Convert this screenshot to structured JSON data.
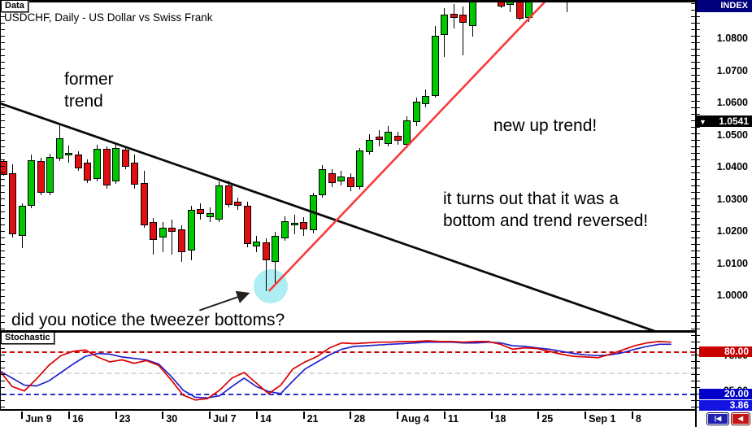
{
  "window": {
    "data_tab_label": "Data",
    "title": "USDCHF, Daily - US Dollar vs Swiss Frank",
    "stochastic_tab_label": "Stochastic",
    "index_header": "INDEX"
  },
  "annotations": {
    "former_trend_line1": "former",
    "former_trend_line2": "trend",
    "new_up_trend": "new up trend!",
    "reversal_line1": "it turns out that it was a",
    "reversal_line2": "bottom and trend reversed!",
    "tweezer_question": "did you notice the tweezer bottoms?"
  },
  "price_axis": {
    "tick_labels": [
      "1.0800",
      "1.0700",
      "1.0600",
      "1.0500",
      "1.0400",
      "1.0300",
      "1.0200",
      "1.0100",
      "1.0000"
    ],
    "tick_values": [
      1.08,
      1.07,
      1.06,
      1.05,
      1.04,
      1.03,
      1.02,
      1.01,
      1.0
    ],
    "current_price_label": "1.0541",
    "current_price_arrow": "▼"
  },
  "stoch_axis": {
    "upper_level_label": "80.00",
    "upper_hidden_label": "75.00",
    "lower_hidden_label": "25.00",
    "lower_level_label": "20.00",
    "current_value_label": "3.86"
  },
  "x_axis": {
    "ticks": [
      {
        "d": 2,
        "label": "Jun 9"
      },
      {
        "d": 7,
        "label": "16"
      },
      {
        "d": 12,
        "label": "23"
      },
      {
        "d": 17,
        "label": "30"
      },
      {
        "d": 22,
        "label": "Jul 7"
      },
      {
        "d": 27,
        "label": "14"
      },
      {
        "d": 32,
        "label": "21"
      },
      {
        "d": 37,
        "label": "28"
      },
      {
        "d": 42,
        "label": "Aug 4"
      },
      {
        "d": 47,
        "label": "11"
      },
      {
        "d": 52,
        "label": "18"
      },
      {
        "d": 57,
        "label": "25"
      },
      {
        "d": 62,
        "label": "Sep 1"
      },
      {
        "d": 67,
        "label": "8"
      }
    ]
  },
  "nav": {
    "scroll_start_icon": "|◀",
    "scroll_left_icon": "◀"
  },
  "colors": {
    "bull": "#00c800",
    "bear": "#e01010",
    "downtrend_line": "#0a0a0a",
    "uptrend_line": "#f93b3b",
    "stoch_red": "#dd0000",
    "stoch_blue": "#2222cc",
    "level_red": "#cc0000",
    "level_gray": "#d8d8d8",
    "level_blue": "#2233cc",
    "upper_badge_bg": "#c80000",
    "lower_badge_bg": "#0000c8",
    "current_badge_bg": "#1414e1",
    "index_bg": "#00007d",
    "highlight": "#aeeef2",
    "arrow": "#222222"
  },
  "chart_data": {
    "type": "candlestick",
    "symbol": "USDCHF",
    "timeframe": "Daily",
    "title": "USDCHF, Daily - US Dollar vs Swiss Frank",
    "price_axis_range_visible": [
      0.989,
      1.0919
    ],
    "last_price": 1.0541,
    "candles": [
      [
        0,
        1.0418,
        1.042,
        1.0372,
        1.0375
      ],
      [
        1,
        1.038,
        1.0408,
        1.018,
        1.019
      ],
      [
        2,
        1.0185,
        1.0286,
        1.0147,
        1.0279
      ],
      [
        3,
        1.0279,
        1.0438,
        1.0271,
        1.0421
      ],
      [
        4,
        1.0418,
        1.0428,
        1.0312,
        1.0319
      ],
      [
        5,
        1.0319,
        1.0441,
        1.0312,
        1.0431
      ],
      [
        6,
        1.0426,
        1.0529,
        1.0418,
        1.0489
      ],
      [
        7,
        1.0436,
        1.0466,
        1.0413,
        1.0443
      ],
      [
        8,
        1.0438,
        1.0448,
        1.0388,
        1.0395
      ],
      [
        9,
        1.0413,
        1.0423,
        1.035,
        1.0357
      ],
      [
        10,
        1.0362,
        1.0469,
        1.0355,
        1.0456
      ],
      [
        11,
        1.0456,
        1.0464,
        1.0332,
        1.0342
      ],
      [
        12,
        1.0355,
        1.0474,
        1.0347,
        1.0459
      ],
      [
        13,
        1.0453,
        1.0461,
        1.0393,
        1.04
      ],
      [
        14,
        1.0413,
        1.0438,
        1.0332,
        1.0345
      ],
      [
        15,
        1.035,
        1.0388,
        1.0211,
        1.0218
      ],
      [
        16,
        1.0228,
        1.0241,
        1.0127,
        1.0173
      ],
      [
        17,
        1.018,
        1.0228,
        1.0135,
        1.0211
      ],
      [
        18,
        1.0211,
        1.0236,
        1.0127,
        1.0198
      ],
      [
        19,
        1.0206,
        1.0218,
        1.0104,
        1.0135
      ],
      [
        20,
        1.014,
        1.0279,
        1.0109,
        1.0266
      ],
      [
        21,
        1.0269,
        1.0287,
        1.0236,
        1.0254
      ],
      [
        22,
        1.0244,
        1.0274,
        1.0228,
        1.0256
      ],
      [
        23,
        1.0236,
        1.0355,
        1.0228,
        1.0342
      ],
      [
        24,
        1.0342,
        1.0357,
        1.0274,
        1.0281
      ],
      [
        25,
        1.0291,
        1.0304,
        1.0266,
        1.0279
      ],
      [
        26,
        1.0279,
        1.0291,
        1.015,
        1.016
      ],
      [
        27,
        1.0152,
        1.0185,
        1.0135,
        1.0168
      ],
      [
        28,
        1.0165,
        1.0178,
        1.0013,
        1.0109
      ],
      [
        29,
        1.0104,
        1.0198,
        1.0033,
        1.0185
      ],
      [
        30,
        1.0178,
        1.0246,
        1.017,
        1.0231
      ],
      [
        31,
        1.0221,
        1.0251,
        1.019,
        1.0226
      ],
      [
        32,
        1.0228,
        1.0244,
        1.0185,
        1.0206
      ],
      [
        33,
        1.0203,
        1.0319,
        1.0193,
        1.0312
      ],
      [
        34,
        1.0312,
        1.0405,
        1.0304,
        1.0393
      ],
      [
        35,
        1.038,
        1.0393,
        1.0337,
        1.035
      ],
      [
        36,
        1.0355,
        1.0388,
        1.0342,
        1.037
      ],
      [
        37,
        1.0368,
        1.038,
        1.0324,
        1.0337
      ],
      [
        38,
        1.0337,
        1.0459,
        1.0329,
        1.0451
      ],
      [
        39,
        1.0446,
        1.0501,
        1.0438,
        1.0484
      ],
      [
        40,
        1.0494,
        1.0514,
        1.0463,
        1.0484
      ],
      [
        41,
        1.0471,
        1.0527,
        1.0463,
        1.0509
      ],
      [
        42,
        1.0496,
        1.0509,
        1.0469,
        1.0481
      ],
      [
        43,
        1.0469,
        1.0557,
        1.0459,
        1.0545
      ],
      [
        44,
        1.054,
        1.0615,
        1.0527,
        1.0603
      ],
      [
        45,
        1.0595,
        1.0641,
        1.0585,
        1.0621
      ],
      [
        46,
        1.0621,
        1.0838,
        1.0615,
        1.0808
      ],
      [
        47,
        1.081,
        1.0894,
        1.0742,
        1.0873
      ],
      [
        48,
        1.0876,
        1.0906,
        1.083,
        1.0863
      ],
      [
        49,
        1.0873,
        1.0899,
        1.0747,
        1.0848
      ],
      [
        50,
        1.0838,
        1.0955,
        1.0805,
        1.093
      ],
      [
        53,
        1.0932,
        1.0945,
        1.0894,
        1.0899
      ],
      [
        54,
        1.0904,
        1.095,
        1.0881,
        1.0938
      ],
      [
        55,
        1.094,
        1.0952,
        1.0856,
        1.0861
      ],
      [
        56,
        1.0863,
        1.0948,
        1.085,
        1.0938
      ],
      [
        60,
        1.0935,
        1.0955,
        1.0881,
        1.0948
      ]
    ],
    "trendlines": [
      {
        "name": "former-downtrend",
        "from_d": -0.4,
        "from_p": 1.0598,
        "to_d": 70.0,
        "to_p": 0.9882,
        "color_key": "downtrend_line",
        "width": 2.8
      },
      {
        "name": "new-uptrend",
        "from_d": 28.3,
        "from_p": 1.0013,
        "to_d": 57.7,
        "to_p": 1.0914,
        "color_key": "uptrend_line",
        "width": 2.6
      }
    ],
    "highlight_circle": {
      "d": 28.5,
      "p": 1.0028,
      "radius_px": 21
    },
    "arrow": {
      "from_d": 20.9,
      "from_p": 0.9953,
      "to_d": 26.1,
      "to_p": 1.0006
    },
    "stochastic": {
      "type": "line",
      "levels": {
        "upper": 80,
        "mid": 50,
        "lower": 20
      },
      "last_value": 3.86,
      "start_d": -0.35,
      "step_d": 1.3,
      "red": [
        52,
        30,
        24,
        41,
        60,
        74,
        80,
        82,
        72,
        65,
        68,
        63,
        67,
        60,
        40,
        18,
        11,
        13,
        25,
        42,
        50,
        35,
        20,
        32,
        55,
        65,
        73,
        85,
        92,
        91,
        92,
        93,
        93,
        94,
        94,
        95,
        94,
        94,
        93,
        94,
        94,
        90,
        83,
        85,
        84,
        80,
        76,
        73,
        72,
        71,
        76,
        82,
        88,
        92,
        94,
        93
      ],
      "blue": [
        52,
        42,
        32,
        31,
        38,
        50,
        62,
        73,
        77,
        76,
        72,
        70,
        68,
        62,
        45,
        25,
        15,
        14,
        17,
        30,
        42,
        30,
        23,
        20,
        38,
        55,
        65,
        75,
        83,
        87,
        88,
        89,
        90,
        91,
        92,
        93,
        93,
        93,
        92,
        92,
        93,
        92,
        88,
        87,
        85,
        83,
        80,
        77,
        75,
        74,
        75,
        78,
        83,
        87,
        90,
        90
      ]
    }
  }
}
